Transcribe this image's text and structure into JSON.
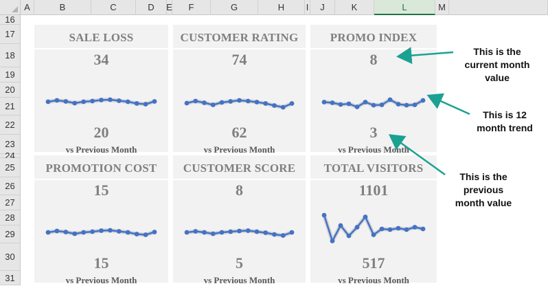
{
  "columns": [
    "A",
    "B",
    "C",
    "D",
    "E",
    "F",
    "G",
    "H",
    "I",
    "J",
    "K",
    "L",
    "M"
  ],
  "selected_column": "L",
  "rows": [
    "16",
    "17",
    "18",
    "19",
    "20",
    "21",
    "22",
    "23",
    "24",
    "25",
    "26",
    "27",
    "28",
    "29",
    "30",
    "31"
  ],
  "colors": {
    "card_bg": "#f2f2f2",
    "sparkline": "#4472c4",
    "arrow": "#1aa192",
    "text": "#7f7f7f"
  },
  "cards": [
    {
      "title": "SALE LOSS",
      "current": "34",
      "previous": "20",
      "sub": "vs Previous Month",
      "trend": [
        4.0,
        4.4,
        4.1,
        3.6,
        4.0,
        4.2,
        4.5,
        4.6,
        4.3,
        4.0,
        3.5,
        3.3,
        4.1
      ]
    },
    {
      "title": "CUSTOMER RATING",
      "current": "74",
      "previous": "62",
      "sub": "vs Previous Month",
      "trend": [
        3.6,
        4.2,
        3.7,
        3.1,
        3.8,
        4.1,
        4.4,
        4.2,
        3.9,
        3.5,
        2.9,
        2.4,
        3.5
      ]
    },
    {
      "title": "PROMO INDEX",
      "current": "8",
      "previous": "3",
      "sub": "vs Previous Month",
      "trend": [
        3.9,
        3.7,
        3.2,
        3.4,
        2.5,
        3.9,
        3.0,
        3.1,
        4.6,
        3.3,
        3.0,
        3.1,
        4.4
      ]
    },
    {
      "title": "PROMOTION COST",
      "current": "15",
      "previous": "15",
      "sub": "vs Previous Month",
      "trend": [
        4.0,
        4.4,
        4.1,
        3.6,
        4.0,
        4.2,
        4.5,
        4.6,
        4.3,
        4.0,
        3.5,
        3.3,
        4.1
      ]
    },
    {
      "title": "CUSTOMER SCORE",
      "current": "8",
      "previous": "5",
      "sub": "vs Previous Month",
      "trend": [
        4.0,
        4.3,
        4.0,
        3.6,
        4.0,
        4.2,
        4.4,
        4.5,
        4.2,
        3.9,
        3.4,
        3.1,
        4.0
      ]
    },
    {
      "title": "TOTAL VISITORS",
      "current": "1101",
      "previous": "517",
      "sub": "vs Previous Month",
      "trend": [
        9.0,
        1.5,
        6.0,
        3.0,
        5.5,
        8.5,
        3.3,
        5.0,
        4.8,
        5.2,
        4.8,
        5.5,
        5.0
      ]
    }
  ],
  "annotations": {
    "current": [
      "This is the",
      "current month",
      "value"
    ],
    "trend": [
      "This is 12",
      "month trend"
    ],
    "previous": [
      "This is the",
      "previous",
      "month value"
    ]
  }
}
